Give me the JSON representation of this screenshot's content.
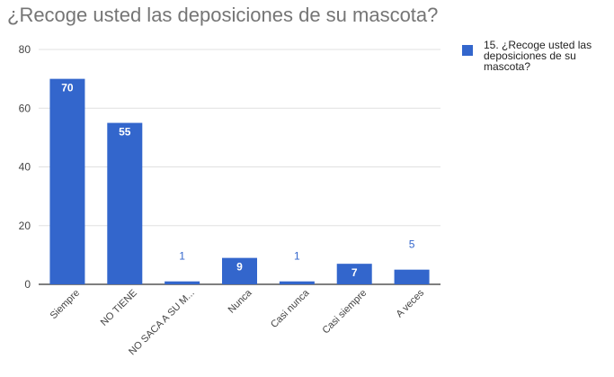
{
  "chart_data": {
    "type": "bar",
    "title": "¿Recoge usted las deposiciones de su mascota?",
    "xlabel": "",
    "ylabel": "",
    "categories": [
      "Siempre",
      "NO TIENE",
      "NO SACA A SU M...",
      "Nunca",
      "Casi nunca",
      "Casi siempre",
      "A veces"
    ],
    "series": [
      {
        "name": "15. ¿Recoge usted las deposiciones de su mascota?",
        "values": [
          70,
          55,
          1,
          9,
          1,
          7,
          5
        ]
      }
    ],
    "data_labels": [
      "70",
      "55",
      "1",
      "9",
      "1",
      "7",
      "5"
    ],
    "ylim": [
      0,
      80
    ],
    "yticks": [
      0,
      20,
      40,
      60,
      80
    ],
    "grid": true,
    "legend_position": "right",
    "colors": {
      "bar": "#3366cc",
      "label_inside": "#ffffff",
      "label_outside": "#3366cc",
      "grid": "#e0e0e0",
      "axis": "#333333",
      "tick_text": "#444444",
      "title": "#757575"
    }
  }
}
